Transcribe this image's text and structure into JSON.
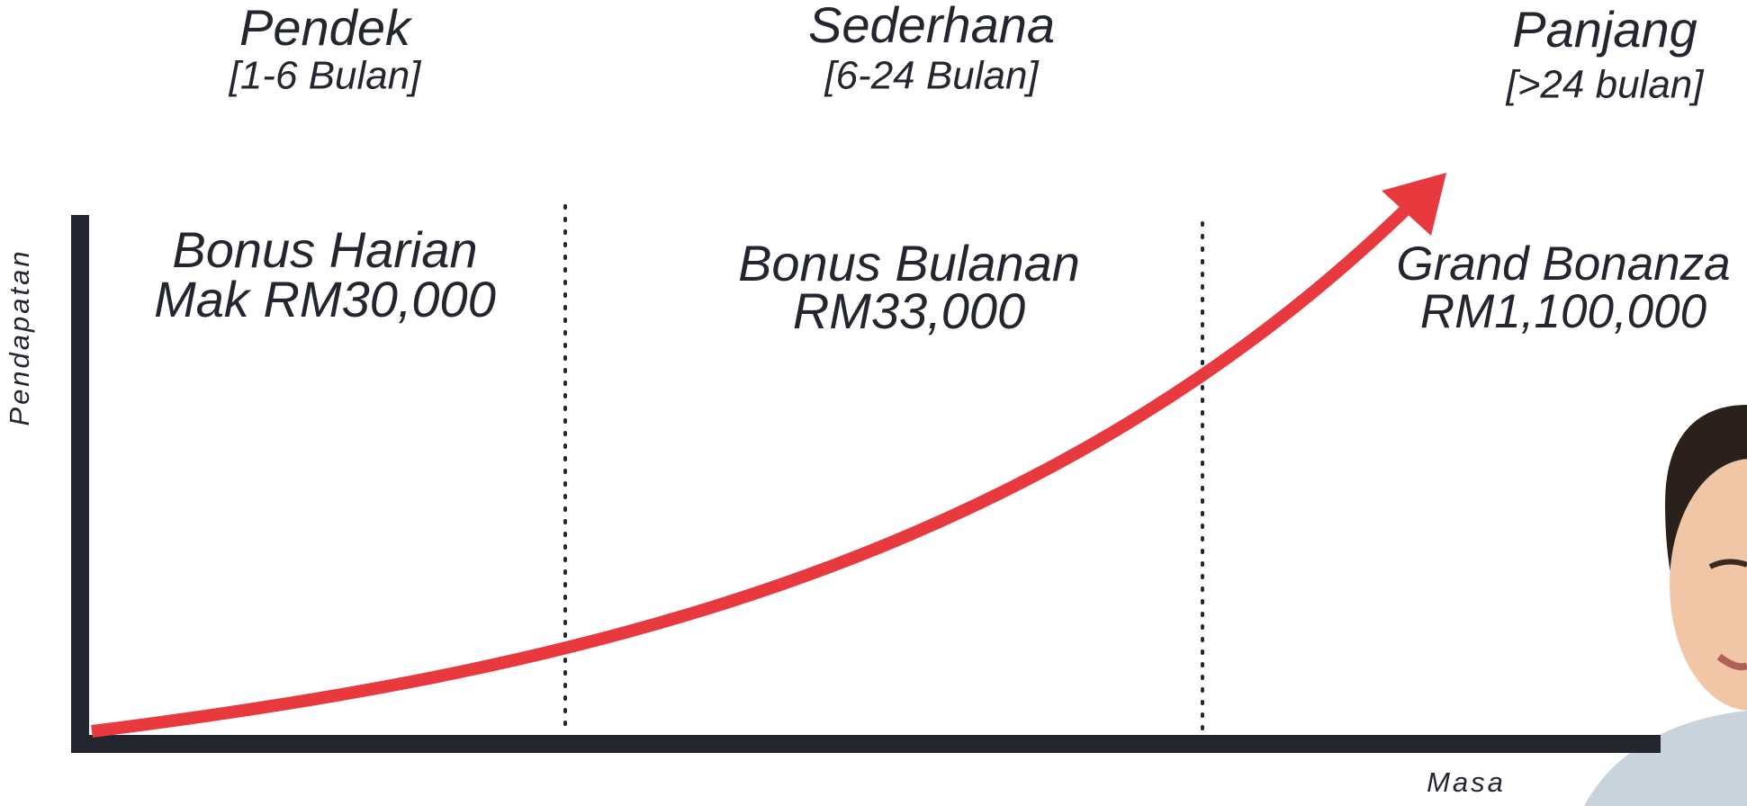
{
  "stages": [
    {
      "title": "Pendek",
      "period": "[1-6 Bulan]",
      "bonus": [
        "Bonus Harian",
        "Mak RM30,000"
      ]
    },
    {
      "title": "Sederhana",
      "period": "[6-24 Bulan]",
      "bonus": [
        "Bonus Bulanan",
        "RM33,000"
      ]
    },
    {
      "title": "Panjang",
      "period": "[>24 bulan]",
      "bonus": [
        "Grand Bonanza",
        "RM1,100,000"
      ]
    }
  ],
  "axes": {
    "y_label": "Pendapatan",
    "x_label": "Masa"
  }
}
